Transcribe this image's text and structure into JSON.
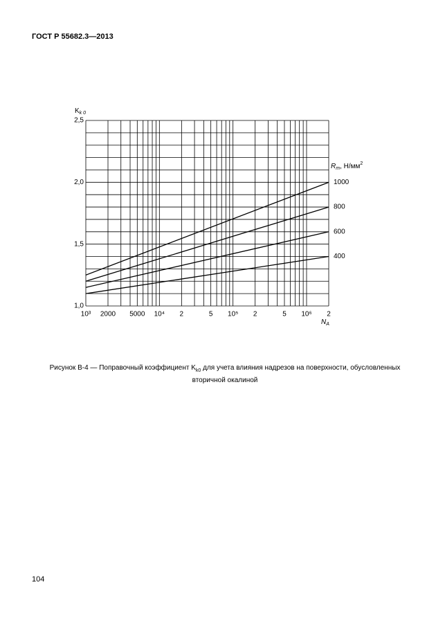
{
  "header": {
    "title": "ГОСТ Р 55682.3—2013"
  },
  "chart_data": {
    "type": "line",
    "ylabel": {
      "symbol": "K",
      "subscript": "k 0"
    },
    "xlabel": {
      "symbol": "N",
      "subscript": "A"
    },
    "legend_title": {
      "symbol": "R",
      "subscript": "m",
      "text": ", Н/мм",
      "superscript": "2"
    },
    "log_x": true,
    "x": [
      1000,
      2000000
    ],
    "xlim": [
      1000,
      2000000
    ],
    "xticks": [
      {
        "value": 1000,
        "label": "10³"
      },
      2000,
      5000,
      {
        "value": 10000,
        "label": "10⁴"
      },
      {
        "value": 20000,
        "label": "2"
      },
      {
        "value": 50000,
        "label": "5"
      },
      {
        "value": 100000,
        "label": "10⁵"
      },
      {
        "value": 200000,
        "label": "2"
      },
      {
        "value": 500000,
        "label": "5"
      },
      {
        "value": 1000000,
        "label": "10⁶"
      },
      {
        "value": 2000000,
        "label": "2"
      }
    ],
    "xgrid": [
      1000,
      2000,
      3000,
      4000,
      5000,
      6000,
      7000,
      8000,
      9000,
      10000,
      20000,
      30000,
      40000,
      50000,
      60000,
      70000,
      80000,
      90000,
      100000,
      200000,
      300000,
      400000,
      500000,
      600000,
      700000,
      800000,
      900000,
      1000000,
      2000000
    ],
    "ylim": [
      1.0,
      2.5
    ],
    "yticks": [
      {
        "value": 1.0,
        "label": "1,0"
      },
      {
        "value": 1.5,
        "label": "1,5"
      },
      {
        "value": 2.0,
        "label": "2,0"
      },
      {
        "value": 2.5,
        "label": "2,5"
      }
    ],
    "ygrid": [
      1.0,
      1.1,
      1.2,
      1.3,
      1.4,
      1.5,
      1.6,
      1.7,
      1.8,
      1.9,
      2.0,
      2.1,
      2.2,
      2.3,
      2.4,
      2.5
    ],
    "grid": true,
    "series": [
      {
        "name": "1000",
        "color": "#000000",
        "values": [
          1.25,
          2.0
        ]
      },
      {
        "name": "800",
        "color": "#000000",
        "values": [
          1.2,
          1.8
        ]
      },
      {
        "name": "600",
        "color": "#000000",
        "values": [
          1.15,
          1.6
        ]
      },
      {
        "name": "400",
        "color": "#000000",
        "values": [
          1.1,
          1.4
        ]
      }
    ]
  },
  "caption": {
    "text_before": "Рисунок В-4 — Поправочный коэффициент K",
    "subscript": "k0",
    "text_after": " для учета влияния надрезов на поверхности, обусловленных",
    "line2": "вторичной окалиной"
  },
  "page_number": "104"
}
